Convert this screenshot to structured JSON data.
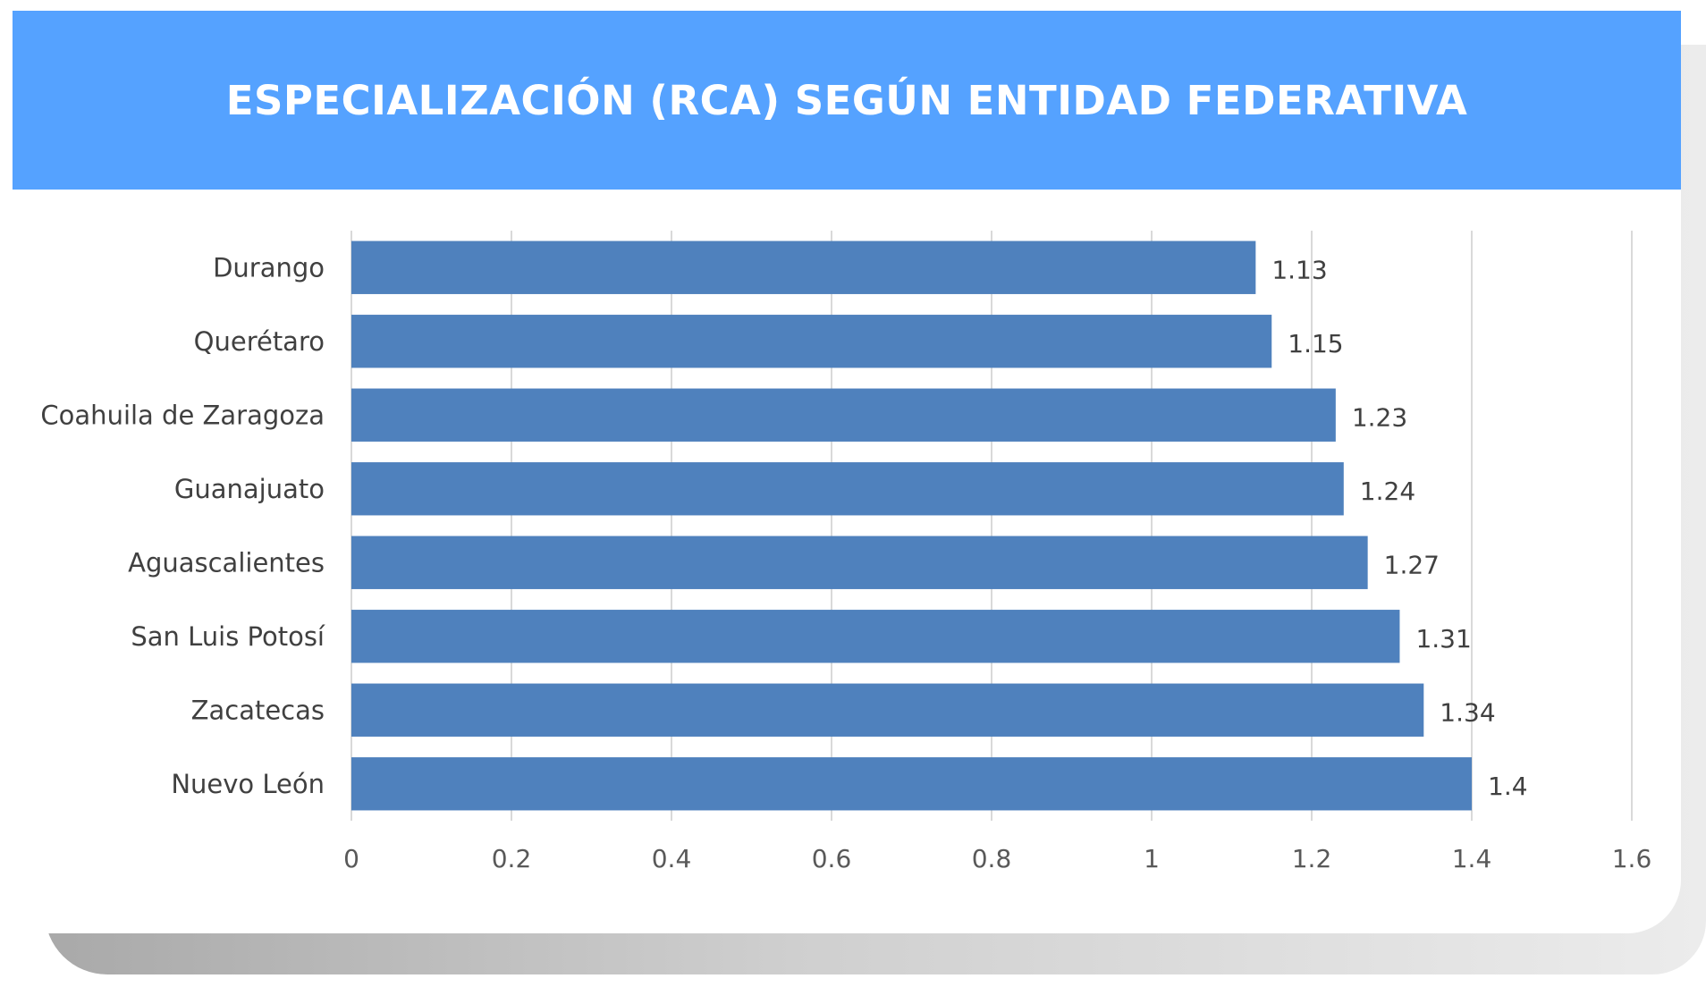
{
  "colors": {
    "header_bg": "#55a2ff",
    "bar": "#4f81bd",
    "grid": "#d9d9d9",
    "text": "#404040"
  },
  "chart_data": {
    "type": "bar",
    "orientation": "horizontal",
    "title": "ESPECIALIZACIÓN (RCA) SEGÚN ENTIDAD FEDERATIVA",
    "categories": [
      "Durango",
      "Querétaro",
      "Coahuila de Zaragoza",
      "Guanajuato",
      "Aguascalientes",
      "San Luis Potosí",
      "Zacatecas",
      "Nuevo León"
    ],
    "values": [
      1.13,
      1.15,
      1.23,
      1.24,
      1.27,
      1.31,
      1.34,
      1.4
    ],
    "value_labels": [
      "1.13",
      "1.15",
      "1.23",
      "1.24",
      "1.27",
      "1.31",
      "1.34",
      "1.4"
    ],
    "xlim": [
      0,
      1.6
    ],
    "xticks": [
      0,
      0.2,
      0.4,
      0.6,
      0.8,
      1,
      1.2,
      1.4,
      1.6
    ],
    "xtick_labels": [
      "0",
      "0.2",
      "0.4",
      "0.6",
      "0.8",
      "1",
      "1.2",
      "1.4",
      "1.6"
    ],
    "grid": true,
    "legend": "none"
  }
}
